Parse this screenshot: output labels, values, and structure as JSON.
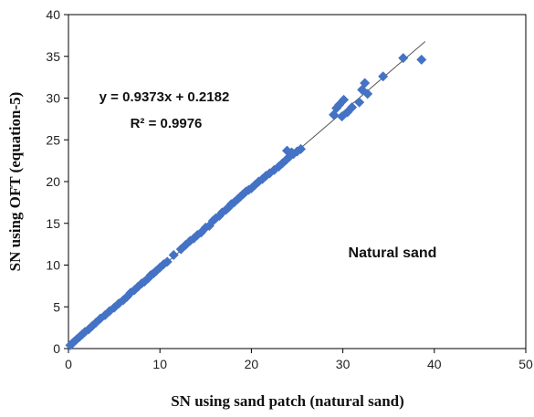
{
  "chart_data": {
    "type": "scatter",
    "xlabel": "SN using sand patch (natural sand)",
    "ylabel": "SN using OFT (equation-5)",
    "xlim": [
      0,
      50
    ],
    "ylim": [
      0,
      40
    ],
    "xticks": [
      0,
      10,
      20,
      30,
      40,
      50
    ],
    "yticks": [
      0,
      5,
      10,
      15,
      20,
      25,
      30,
      35,
      40
    ],
    "grid": false,
    "marker": "diamond",
    "marker_color": "#4472C4",
    "line_color": "#555555",
    "trendline": {
      "slope": 0.9373,
      "intercept": 0.2182,
      "x_range": [
        0,
        39
      ],
      "equation_label": "y = 0.9373x + 0.2182",
      "r2_label": "R² = 0.9976"
    },
    "annotation": "Natural sand",
    "points": [
      [
        0.2,
        0.4
      ],
      [
        0.4,
        0.6
      ],
      [
        0.6,
        0.8
      ],
      [
        0.9,
        1.1
      ],
      [
        1.2,
        1.4
      ],
      [
        1.5,
        1.7
      ],
      [
        1.8,
        2.0
      ],
      [
        2.2,
        2.3
      ],
      [
        2.6,
        2.7
      ],
      [
        3.0,
        3.1
      ],
      [
        3.5,
        3.6
      ],
      [
        4.0,
        4.0
      ],
      [
        4.5,
        4.5
      ],
      [
        5.0,
        4.9
      ],
      [
        5.5,
        5.4
      ],
      [
        6.0,
        5.8
      ],
      [
        6.4,
        6.2
      ],
      [
        6.8,
        6.7
      ],
      [
        7.2,
        7.0
      ],
      [
        7.6,
        7.4
      ],
      [
        8.0,
        7.8
      ],
      [
        8.3,
        8.0
      ],
      [
        8.7,
        8.4
      ],
      [
        9.0,
        8.8
      ],
      [
        9.3,
        9.0
      ],
      [
        9.6,
        9.3
      ],
      [
        10.0,
        9.7
      ],
      [
        10.4,
        10.1
      ],
      [
        10.8,
        10.4
      ],
      [
        11.5,
        11.2
      ],
      [
        12.3,
        11.9
      ],
      [
        12.8,
        12.4
      ],
      [
        13.3,
        12.9
      ],
      [
        13.7,
        13.2
      ],
      [
        14.1,
        13.6
      ],
      [
        14.5,
        13.9
      ],
      [
        15.0,
        14.5
      ],
      [
        15.4,
        14.7
      ],
      [
        15.8,
        15.3
      ],
      [
        16.1,
        15.6
      ],
      [
        16.5,
        15.9
      ],
      [
        16.8,
        16.3
      ],
      [
        17.2,
        16.6
      ],
      [
        17.5,
        16.9
      ],
      [
        17.8,
        17.3
      ],
      [
        18.1,
        17.5
      ],
      [
        18.5,
        17.9
      ],
      [
        18.8,
        18.2
      ],
      [
        19.1,
        18.5
      ],
      [
        19.4,
        18.8
      ],
      [
        19.7,
        19.0
      ],
      [
        20.0,
        19.2
      ],
      [
        20.4,
        19.6
      ],
      [
        20.8,
        20.0
      ],
      [
        21.2,
        20.3
      ],
      [
        21.6,
        20.7
      ],
      [
        22.0,
        21.0
      ],
      [
        22.5,
        21.4
      ],
      [
        23.0,
        21.8
      ],
      [
        23.4,
        22.2
      ],
      [
        23.8,
        22.6
      ],
      [
        24.2,
        23.0
      ],
      [
        24.6,
        23.3
      ],
      [
        25.0,
        23.6
      ],
      [
        25.4,
        23.9
      ],
      [
        23.9,
        23.7
      ],
      [
        24.4,
        23.5
      ],
      [
        29.0,
        28.0
      ],
      [
        29.3,
        28.8
      ],
      [
        29.6,
        29.2
      ],
      [
        29.9,
        27.8
      ],
      [
        30.1,
        29.8
      ],
      [
        30.5,
        28.3
      ],
      [
        31.0,
        28.9
      ],
      [
        31.8,
        29.5
      ],
      [
        32.1,
        31.0
      ],
      [
        32.4,
        31.8
      ],
      [
        32.7,
        30.5
      ],
      [
        34.4,
        32.6
      ],
      [
        36.6,
        34.8
      ],
      [
        38.6,
        34.6
      ]
    ]
  }
}
